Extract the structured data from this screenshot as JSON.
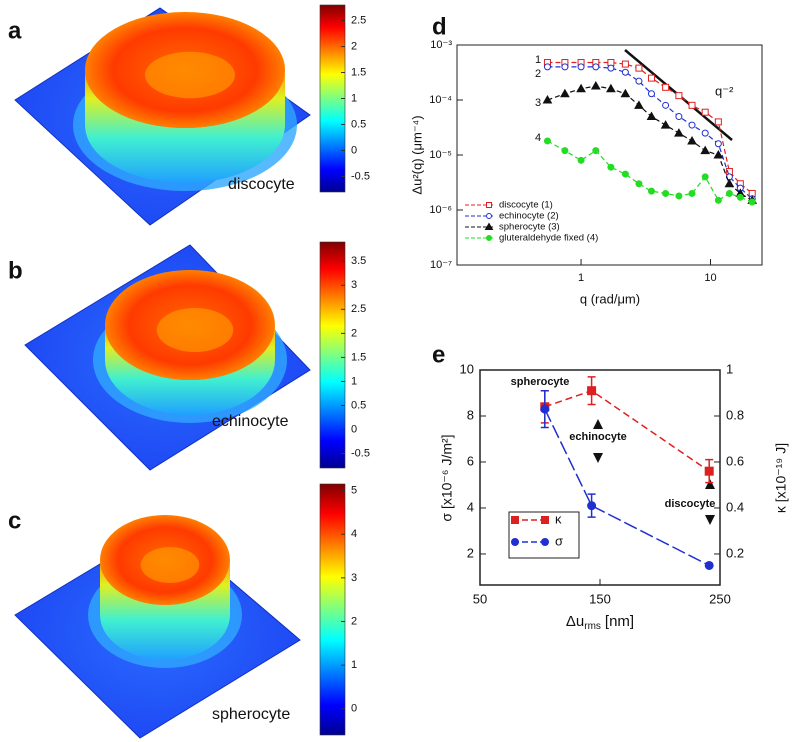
{
  "chart_data": [
    {
      "type": "surface",
      "panel": "a",
      "label": "discocyte",
      "ylim": [
        -0.8,
        2.8
      ],
      "yticks": [
        -0.5,
        0,
        0.5,
        1,
        1.5,
        2,
        2.5
      ]
    },
    {
      "type": "surface",
      "panel": "b",
      "label": "echinocyte",
      "ylim": [
        -0.8,
        3.9
      ],
      "yticks": [
        -0.5,
        0,
        0.5,
        1,
        1.5,
        2,
        2.5,
        3,
        3.5
      ]
    },
    {
      "type": "surface",
      "panel": "c",
      "label": "spherocyte",
      "ylim": [
        -0.6,
        5.15
      ],
      "yticks": [
        0,
        1,
        2,
        3,
        4,
        5
      ]
    },
    {
      "type": "line",
      "panel": "d",
      "xlabel": "q (rad/μm)",
      "ylabel": "Δu²(q) (μm⁻⁴)",
      "xscale": "log",
      "yscale": "log",
      "xlim": [
        0.11,
        25
      ],
      "ylim": [
        1e-07,
        0.001
      ],
      "xticks": [
        1,
        10
      ],
      "yticks": [
        {
          "value": 1e-07,
          "label": "10⁻⁷"
        },
        {
          "value": 1e-06,
          "label": "10⁻⁶"
        },
        {
          "value": 1e-05,
          "label": "10⁻⁵"
        },
        {
          "value": 0.0001,
          "label": "10⁻⁴"
        },
        {
          "value": 0.001,
          "label": "10⁻³"
        }
      ],
      "x": [
        0.55,
        0.75,
        1.0,
        1.3,
        1.7,
        2.2,
        2.8,
        3.5,
        4.5,
        5.7,
        7.2,
        9.1,
        11.5,
        14,
        17,
        21
      ],
      "series": [
        {
          "name": "discocyte (1)",
          "color": "#e02020",
          "marker": "square-open",
          "values": [
            0.00048,
            0.00048,
            0.00048,
            0.00048,
            0.00048,
            0.00045,
            0.00038,
            0.00025,
            0.00017,
            0.00012,
            8e-05,
            6e-05,
            4e-05,
            5e-06,
            3e-06,
            2e-06
          ]
        },
        {
          "name": "echinocyte (2)",
          "color": "#2030d0",
          "marker": "circle-open",
          "values": [
            0.0004,
            0.0004,
            0.0004,
            0.0004,
            0.00038,
            0.00032,
            0.00022,
            0.00013,
            8e-05,
            5e-05,
            3.5e-05,
            2.5e-05,
            1.6e-05,
            4e-06,
            2.5e-06,
            1.6e-06
          ]
        },
        {
          "name": "spherocyte (3)",
          "color": "#111111",
          "marker": "triangle",
          "values": [
            0.0001,
            0.00013,
            0.00016,
            0.00018,
            0.00016,
            0.00013,
            8e-05,
            5e-05,
            3.5e-05,
            2.5e-05,
            1.8e-05,
            1.2e-05,
            1e-05,
            3e-06,
            2e-06,
            1.5e-06
          ]
        },
        {
          "name": "gluteraldehyde fixed (4)",
          "color": "#22dd22",
          "marker": "circle",
          "values": [
            1.8e-05,
            1.2e-05,
            8e-06,
            1.2e-05,
            6e-06,
            4.5e-06,
            3e-06,
            2.2e-06,
            2e-06,
            1.8e-06,
            2e-06,
            4e-06,
            1.5e-06,
            2e-06,
            1.7e-06,
            1.4e-06
          ]
        }
      ],
      "annotations": [
        "1",
        "2",
        "3",
        "4",
        "q⁻²"
      ],
      "legend": "lower-left"
    },
    {
      "type": "errorline",
      "panel": "e",
      "xlabel": "Δu",
      "xlabel_sub": "rms",
      "xlabel_unit": "[nm]",
      "ylabel": "σ  [x10⁻⁶ J/m²]",
      "y2label": "κ  [x10⁻¹⁹ J]",
      "xlim": [
        50,
        250
      ],
      "xticks": [
        50,
        150,
        250
      ],
      "ylim": [
        0.65,
        10
      ],
      "yticks": [
        2,
        4,
        6,
        8,
        10
      ],
      "y2lim": [
        0.065,
        1.0
      ],
      "y2ticks": [
        0.2,
        0.4,
        0.6,
        0.8,
        1.0
      ],
      "x": [
        104,
        143,
        241
      ],
      "series": [
        {
          "name": "κ",
          "color": "#dd2020",
          "marker": "square",
          "axis": "y2",
          "values": [
            0.84,
            0.91,
            0.56
          ],
          "errors": [
            0.07,
            0.06,
            0.05
          ]
        },
        {
          "name": "σ",
          "color": "#2030d0",
          "marker": "circle",
          "axis": "y",
          "values": [
            8.3,
            4.1,
            1.5
          ],
          "errors": [
            0.8,
            0.5,
            0
          ]
        }
      ],
      "annotations": [
        "spherocyte",
        "echinocyte",
        "discocyte"
      ],
      "legend": "lower-left"
    }
  ]
}
